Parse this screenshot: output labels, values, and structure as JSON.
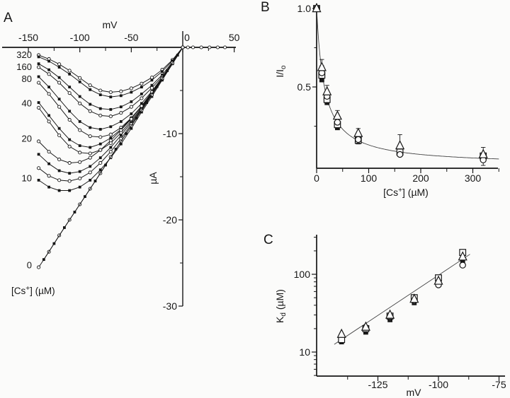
{
  "figure": {
    "background": "#fbfbfa",
    "ink": "#161616",
    "fit_color": "#3a3a3a",
    "panel_a": {
      "label": "A",
      "x_title": "mV",
      "y_title": "µA",
      "conc_label": {
        "pre": "[Cs",
        "sup": "+",
        "post": "] (µM)"
      }
    },
    "panel_b": {
      "label": "B",
      "y_title": {
        "main": "I/I",
        "sub": "o"
      },
      "x_title": {
        "pre": "[Cs",
        "sup": "+",
        "post": "] (µM)"
      }
    },
    "panel_c": {
      "label": "C",
      "y_title": {
        "main": "K",
        "sub": "d",
        "post": " (µM)"
      },
      "x_title": "mV"
    }
  },
  "chart_data": [
    {
      "id": "A",
      "type": "line",
      "xlabel": "mV",
      "ylabel": "µA",
      "xlim": [
        -172,
        52
      ],
      "ylim": [
        -30,
        0
      ],
      "x_ticks": {
        "major": [
          -150,
          -100,
          -50,
          0,
          50
        ],
        "major_labels": [
          "-150",
          "-100",
          "-50",
          "0",
          "50"
        ],
        "minor": [
          -125,
          -75,
          -25,
          25
        ]
      },
      "y_ticks": {
        "major": [
          -10,
          -20,
          -30
        ],
        "major_labels": [
          "-10",
          "-20",
          "-30"
        ],
        "minor": [
          -5,
          -15,
          -25
        ]
      },
      "x": [
        -140,
        -130,
        -120,
        -110,
        -100,
        -90,
        -80,
        -70,
        -60,
        -50,
        -40,
        -30,
        -20,
        -10,
        0
      ],
      "series": [
        {
          "conc": 320,
          "marker": "open-circle",
          "values": [
            -0.9,
            -1.35,
            -1.95,
            -2.7,
            -3.55,
            -4.4,
            -5.0,
            -5.2,
            -5.1,
            -4.75,
            -4.2,
            -3.5,
            -2.6,
            -1.45,
            0
          ]
        },
        {
          "conc": 320,
          "marker": "filled-square",
          "values": [
            -1.1,
            -1.6,
            -2.3,
            -3.1,
            -4.0,
            -4.9,
            -5.5,
            -5.75,
            -5.6,
            -5.2,
            -4.6,
            -3.8,
            -2.8,
            -1.55,
            0
          ]
        },
        {
          "conc": 160,
          "marker": "filled-square",
          "values": [
            -1.9,
            -2.6,
            -3.5,
            -4.6,
            -5.7,
            -6.6,
            -7.1,
            -7.2,
            -6.9,
            -6.3,
            -5.4,
            -4.4,
            -3.2,
            -1.7,
            0
          ]
        },
        {
          "conc": 160,
          "marker": "open-circle",
          "values": [
            -2.3,
            -3.1,
            -4.1,
            -5.3,
            -6.5,
            -7.4,
            -7.9,
            -8.0,
            -7.6,
            -6.9,
            -5.9,
            -4.7,
            -3.4,
            -1.8,
            0
          ]
        },
        {
          "conc": 80,
          "marker": "filled-square",
          "values": [
            -3.4,
            -4.6,
            -6.0,
            -7.4,
            -8.6,
            -9.3,
            -9.5,
            -9.2,
            -8.6,
            -7.7,
            -6.5,
            -5.1,
            -3.5,
            -1.8,
            0
          ]
        },
        {
          "conc": 80,
          "marker": "open-circle",
          "values": [
            -4.1,
            -5.4,
            -6.9,
            -8.4,
            -9.6,
            -10.3,
            -10.4,
            -10.1,
            -9.3,
            -8.2,
            -6.9,
            -5.3,
            -3.6,
            -1.8,
            0
          ]
        },
        {
          "conc": 40,
          "marker": "filled-square",
          "values": [
            -6.4,
            -7.9,
            -9.4,
            -10.7,
            -11.4,
            -11.6,
            -11.2,
            -10.5,
            -9.5,
            -8.2,
            -6.8,
            -5.2,
            -3.6,
            -1.8,
            0
          ]
        },
        {
          "conc": 40,
          "marker": "open-circle",
          "values": [
            -7.0,
            -8.6,
            -10.2,
            -11.5,
            -12.2,
            -12.3,
            -11.9,
            -11.1,
            -9.9,
            -8.5,
            -7.0,
            -5.4,
            -3.6,
            -1.8,
            0
          ]
        },
        {
          "conc": 20,
          "marker": "open-circle",
          "values": [
            -10.9,
            -12.1,
            -13.0,
            -13.4,
            -13.3,
            -12.8,
            -11.9,
            -10.8,
            -9.6,
            -8.3,
            -6.8,
            -5.2,
            -3.6,
            -1.8,
            0
          ]
        },
        {
          "conc": 20,
          "marker": "filled-square",
          "values": [
            -12.4,
            -13.5,
            -14.3,
            -14.6,
            -14.4,
            -13.8,
            -12.8,
            -11.6,
            -10.2,
            -8.7,
            -7.1,
            -5.4,
            -3.7,
            -1.9,
            0
          ]
        },
        {
          "conc": 10,
          "marker": "open-circle",
          "values": [
            -14.0,
            -14.9,
            -15.4,
            -15.5,
            -15.2,
            -14.5,
            -13.4,
            -12.1,
            -10.6,
            -8.9,
            -7.2,
            -5.5,
            -3.7,
            -1.85,
            0
          ]
        },
        {
          "conc": 10,
          "marker": "filled-square",
          "values": [
            -15.4,
            -16.2,
            -16.6,
            -16.6,
            -16.2,
            -15.4,
            -14.2,
            -12.8,
            -11.2,
            -9.4,
            -7.5,
            -5.7,
            -3.8,
            -1.9,
            0
          ]
        },
        {
          "conc": 0,
          "marker": "open-circle",
          "x": [
            -140,
            -130,
            -120,
            -110,
            -100,
            -90,
            -80,
            -70,
            -60,
            -50,
            -40,
            -30,
            -20,
            -10,
            0,
            5,
            10,
            18,
            26,
            34,
            41
          ],
          "values": [
            -25.5,
            -23.7,
            -21.8,
            -20.0,
            -18.2,
            -16.4,
            -14.6,
            -12.7,
            -10.9,
            -9.1,
            -7.3,
            -5.5,
            -3.6,
            -1.8,
            0,
            0,
            0,
            0,
            0,
            0,
            0
          ]
        },
        {
          "conc": 0,
          "marker": "filled-square",
          "x": [
            -135,
            -125,
            -115,
            -105,
            -95,
            -85,
            -75,
            -65,
            -55,
            -45,
            -35,
            -25,
            -15,
            -5
          ],
          "values": [
            -24.6,
            -22.75,
            -20.9,
            -19.1,
            -17.3,
            -15.5,
            -13.65,
            -11.8,
            -10.0,
            -8.2,
            -6.4,
            -4.55,
            -2.7,
            -0.9
          ]
        }
      ],
      "curve_labels": [
        {
          "text": "320",
          "ua": -0.9
        },
        {
          "text": "160",
          "ua": -2.3
        },
        {
          "text": "80",
          "ua": -3.7
        },
        {
          "text": "40",
          "ua": -6.5
        },
        {
          "text": "20",
          "ua": -10.6
        },
        {
          "text": "10",
          "ua": -15.2
        },
        {
          "text": "0",
          "ua": -25.3
        }
      ]
    },
    {
      "id": "B",
      "type": "scatter",
      "xlabel": "[Cs+] (µM)",
      "ylabel": "I/Io",
      "xlim": [
        0,
        350
      ],
      "ylim": [
        0,
        1.03
      ],
      "x_ticks": {
        "major": [
          0,
          100,
          200,
          300
        ],
        "major_labels": [
          "0",
          "100",
          "200",
          "300"
        ],
        "minor": [
          50,
          150,
          250,
          350
        ]
      },
      "y_ticks": {
        "major": [
          1.0,
          0.5
        ],
        "major_labels": [
          "1.0",
          "0.5"
        ],
        "minor": [
          0.75,
          0.25
        ]
      },
      "x": [
        0,
        10,
        20,
        40,
        80,
        160,
        320
      ],
      "series": [
        {
          "marker": "filled-square",
          "values": [
            1.0,
            0.545,
            0.4,
            0.24,
            0.15,
            0.08,
            0.055
          ]
        },
        {
          "marker": "open-square",
          "values": [
            1.0,
            0.575,
            0.42,
            0.26,
            0.16,
            0.085,
            0.06
          ]
        },
        {
          "marker": "open-circle",
          "values": [
            1.0,
            0.59,
            0.44,
            0.275,
            0.165,
            0.07,
            0.035
          ],
          "errors": [
            0,
            0.045,
            0,
            0,
            0,
            0,
            0.035
          ]
        },
        {
          "marker": "open-triangle",
          "values": [
            1.0,
            0.625,
            0.47,
            0.315,
            0.205,
            0.126,
            0.07
          ],
          "errors": [
            0,
            0.05,
            0.04,
            0.035,
            0.03,
            0.07,
            0.045
          ]
        }
      ],
      "fit": {
        "model": "I/Io = 1/(1+[Cs]/Kd)",
        "kd_uM": 15,
        "range": [
          0,
          350
        ]
      }
    },
    {
      "id": "C",
      "type": "scatter",
      "yscale": "log",
      "xlabel": "mV",
      "ylabel": "Kd (µM)",
      "xlim": [
        -150,
        -74
      ],
      "ylim": [
        5,
        300
      ],
      "x_ticks": {
        "major": [
          -125,
          -100,
          -75
        ],
        "major_labels": [
          "-125",
          "-100",
          "-75"
        ],
        "minor": [
          -137.5,
          -112.5,
          -87.5
        ]
      },
      "y_ticks": {
        "major": [
          100,
          10
        ],
        "major_labels": [
          "100",
          "10"
        ],
        "minor": [
          300,
          200,
          90,
          80,
          70,
          60,
          50,
          40,
          30,
          20,
          9,
          8,
          7,
          6,
          5
        ]
      },
      "x": [
        -140,
        -130,
        -120,
        -110,
        -100,
        -90
      ],
      "series": [
        {
          "marker": "filled-square",
          "values": [
            13.5,
            18,
            26,
            43,
            80,
            148
          ]
        },
        {
          "marker": "open-circle",
          "values": [
            15,
            19.5,
            28,
            46,
            73,
            131
          ]
        },
        {
          "marker": "open-square",
          "values": [
            14.5,
            20,
            29,
            50,
            90,
            191
          ]
        },
        {
          "marker": "open-triangle",
          "values": [
            17,
            21,
            30,
            48,
            82,
            168
          ]
        }
      ],
      "fit": {
        "model": "Kd = Kd(-140 mV)*exp((V+140)/s)",
        "kd_at_minus140_uM": 14.5,
        "efold_mV": 21,
        "range": [
          -143,
          -87
        ]
      }
    }
  ]
}
